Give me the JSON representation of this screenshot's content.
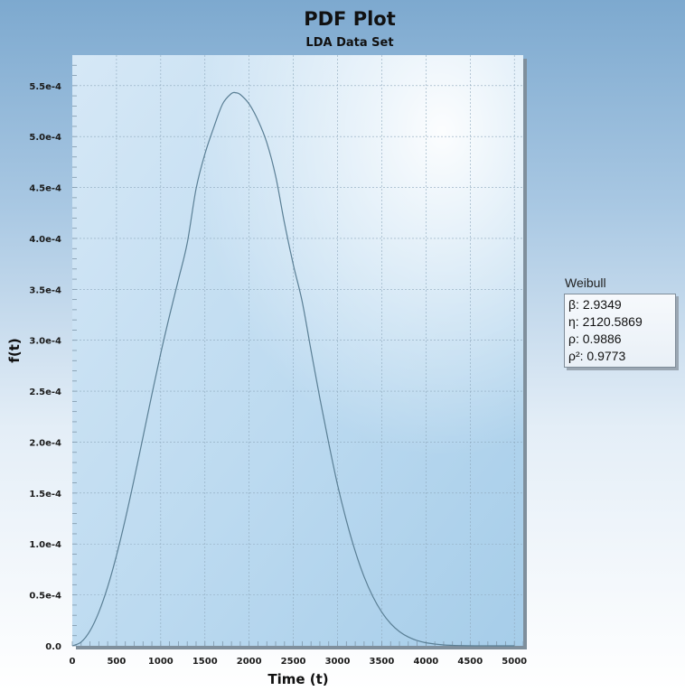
{
  "chart_data": {
    "type": "line",
    "title": "PDF Plot",
    "subtitle": "LDA Data Set",
    "xlabel": "Time (t)",
    "ylabel": "f(t)",
    "xlim": [
      0,
      5100
    ],
    "ylim": [
      0,
      0.00058
    ],
    "x_ticks": [
      0,
      500,
      1000,
      1500,
      2000,
      2500,
      3000,
      3500,
      4000,
      4500,
      5000
    ],
    "x_tick_labels": [
      "0",
      "500",
      "1000",
      "1500",
      "2000",
      "2500",
      "3000",
      "3500",
      "4000",
      "4500",
      "5000"
    ],
    "y_ticks": [
      0,
      5e-05,
      0.0001,
      0.00015,
      0.0002,
      0.00025,
      0.0003,
      0.00035,
      0.0004,
      0.00045,
      0.0005,
      0.00055
    ],
    "y_tick_labels": [
      "0.0",
      "0.5e-4",
      "1.0e-4",
      "1.5e-4",
      "2.0e-4",
      "2.5e-4",
      "3.0e-4",
      "3.5e-4",
      "4.0e-4",
      "4.5e-4",
      "5.0e-4",
      "5.5e-4"
    ],
    "grid": true,
    "legend_placement": "right",
    "series": [
      {
        "name": "Weibull",
        "color": "#5a7f95",
        "x": [
          0,
          100,
          200,
          300,
          400,
          500,
          600,
          700,
          800,
          900,
          1000,
          1100,
          1200,
          1300,
          1400,
          1500,
          1600,
          1700,
          1800,
          1850,
          1900,
          2000,
          2100,
          2200,
          2300,
          2400,
          2500,
          2600,
          2700,
          2800,
          2900,
          3000,
          3100,
          3200,
          3300,
          3400,
          3500,
          3600,
          3700,
          3800,
          3900,
          4000,
          4200,
          4400,
          4600,
          4800,
          5000
        ],
        "y": [
          0,
          3.7e-06,
          1.47e-05,
          3.3e-05,
          5.79e-05,
          8.88e-05,
          0.0001245,
          0.0001638,
          0.0002051,
          0.0002468,
          0.0002871,
          0.0003243,
          0.0003595,
          0.0003955,
          0.0004488,
          0.000483,
          0.000509,
          0.000532,
          0.0005423,
          0.000543,
          0.0005413,
          0.000532,
          0.000516,
          0.000494,
          0.000461,
          0.000415,
          0.000374,
          0.000338,
          0.00029,
          0.000243,
          0.000199,
          0.000158,
          0.000123,
          9.28e-05,
          6.79e-05,
          4.82e-05,
          3.31e-05,
          2.19e-05,
          1.4e-05,
          8.7e-06,
          5.2e-06,
          3e-06,
          9e-07,
          2e-07,
          5e-08,
          1e-08,
          0
        ]
      }
    ]
  },
  "legend": {
    "title": "Weibull",
    "rows": [
      "β: 2.9349",
      "η: 2120.5869",
      "ρ: 0.9886",
      "ρ²: 0.9773"
    ]
  }
}
